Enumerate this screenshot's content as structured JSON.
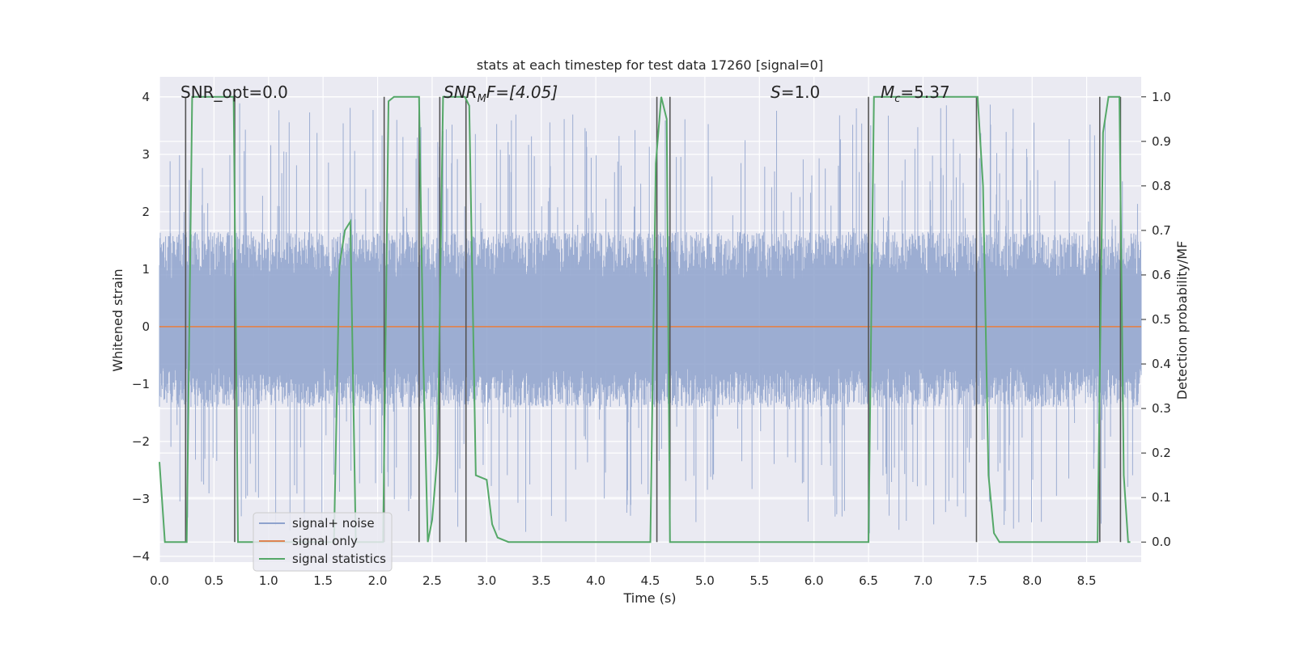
{
  "chart_data": {
    "type": "line",
    "title": "stats at each timestep for test data 17260 [signal=0]",
    "xlabel": "Time (s)",
    "ylabel_left": "Whitened strain",
    "ylabel_right": "Detection probability/MF",
    "xlim": [
      0.0,
      9.0
    ],
    "ylim_left": [
      -4.1,
      4.35
    ],
    "ylim_right": [
      -0.045,
      1.045
    ],
    "x_ticks": [
      "0.0",
      "0.5",
      "1.0",
      "1.5",
      "2.0",
      "2.5",
      "3.0",
      "3.5",
      "4.0",
      "4.5",
      "5.0",
      "5.5",
      "6.0",
      "6.5",
      "7.0",
      "7.5",
      "8.0",
      "8.5"
    ],
    "x_tick_values": [
      0,
      0.5,
      1,
      1.5,
      2,
      2.5,
      3,
      3.5,
      4,
      4.5,
      5,
      5.5,
      6,
      6.5,
      7,
      7.5,
      8,
      8.5
    ],
    "y_left_ticks": [
      "4",
      "3",
      "2",
      "1",
      "0",
      "−1",
      "−2",
      "−3",
      "−4"
    ],
    "y_left_tick_values": [
      4,
      3,
      2,
      1,
      0,
      -1,
      -2,
      -3,
      -4
    ],
    "y_right_ticks": [
      "1.0",
      "0.9",
      "0.8",
      "0.7",
      "0.6",
      "0.5",
      "0.4",
      "0.3",
      "0.2",
      "0.1",
      "0.0"
    ],
    "y_right_tick_values": [
      1.0,
      0.9,
      0.8,
      0.7,
      0.6,
      0.5,
      0.4,
      0.3,
      0.2,
      0.1,
      0.0
    ],
    "grid": true,
    "legend_position": "lower-left",
    "annotations": {
      "snr_opt": "SNR_opt=0.0",
      "snr_mf_base": "SNR",
      "snr_mf_sub": "M",
      "snr_mf_rest": "F=[4.05]",
      "s_label": "S",
      "s_value": "=1.0",
      "mc_base": "M",
      "mc_sub": "c",
      "mc_value": "=5.37"
    },
    "series": [
      {
        "name": "signal+ noise",
        "color": "#8ea2cd",
        "description_kind": "noise",
        "envelope": {
          "core_low": -1.4,
          "core_high": 1.65,
          "peak_high": 3.9,
          "peak_low": -3.6
        }
      },
      {
        "name": "signal only",
        "color": "#dd8452",
        "x": [
          0.0,
          9.0
        ],
        "y": [
          0.0,
          0.0
        ]
      },
      {
        "name": "signal statistics",
        "color": "#55a868",
        "axis": "right",
        "x": [
          0.0,
          0.05,
          0.1,
          0.2,
          0.25,
          0.3,
          0.4,
          0.5,
          0.6,
          0.68,
          0.72,
          0.8,
          0.9,
          1.0,
          1.5,
          1.6,
          1.65,
          1.7,
          1.75,
          1.8,
          1.85,
          1.9,
          2.0,
          2.05,
          2.1,
          2.15,
          2.25,
          2.3,
          2.38,
          2.42,
          2.46,
          2.5,
          2.55,
          2.6,
          2.7,
          2.8,
          2.84,
          2.9,
          3.0,
          3.05,
          3.1,
          3.2,
          3.4,
          3.6,
          4.0,
          4.4,
          4.5,
          4.55,
          4.6,
          4.65,
          4.68,
          4.72,
          4.8,
          5.0,
          6.0,
          6.5,
          6.55,
          6.6,
          6.7,
          7.0,
          7.4,
          7.5,
          7.55,
          7.6,
          7.65,
          7.7,
          7.8,
          8.0,
          8.5,
          8.6,
          8.65,
          8.7,
          8.75,
          8.8,
          8.84,
          8.88,
          8.9
        ],
        "y": [
          0.18,
          0.0,
          0.0,
          0.0,
          0.0,
          1.0,
          1.0,
          1.0,
          1.0,
          1.0,
          0.0,
          0.0,
          0.0,
          0.0,
          0.0,
          0.0,
          0.62,
          0.7,
          0.72,
          0.0,
          0.0,
          0.0,
          0.0,
          0.0,
          0.99,
          1.0,
          1.0,
          1.0,
          1.0,
          0.4,
          0.0,
          0.05,
          0.2,
          1.0,
          1.0,
          1.0,
          0.98,
          0.15,
          0.14,
          0.04,
          0.01,
          0.0,
          0.0,
          0.0,
          0.0,
          0.0,
          0.0,
          0.85,
          1.0,
          0.95,
          0.0,
          0.0,
          0.0,
          0.0,
          0.0,
          0.0,
          1.0,
          1.0,
          1.0,
          1.0,
          1.0,
          1.0,
          0.8,
          0.15,
          0.02,
          0.0,
          0.0,
          0.0,
          0.0,
          0.0,
          0.92,
          1.0,
          1.0,
          1.0,
          0.15,
          0.0,
          0.0
        ]
      }
    ],
    "vertical_markers": [
      0.24,
      0.69,
      2.06,
      2.38,
      2.57,
      2.81,
      4.56,
      4.68,
      6.5,
      7.49,
      8.62,
      8.81
    ],
    "legend": [
      {
        "label": "signal+ noise",
        "color": "#8ea2cd"
      },
      {
        "label": "signal only",
        "color": "#dd8452"
      },
      {
        "label": "signal statistics",
        "color": "#55a868"
      }
    ]
  }
}
